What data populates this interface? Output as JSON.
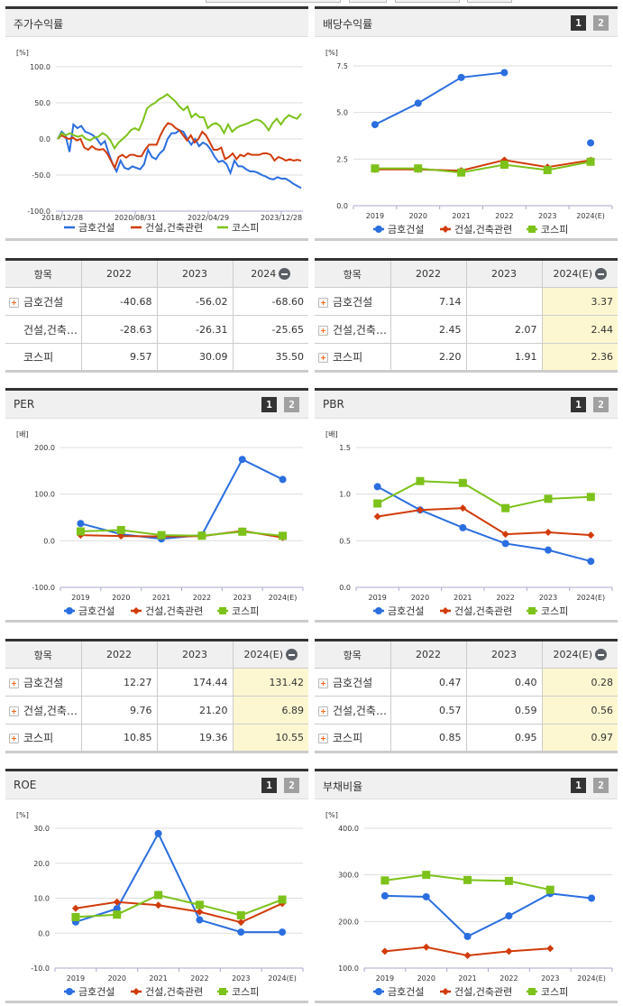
{
  "colors": {
    "company": "#2a6ee0",
    "sector": "#d13b0a",
    "kospi": "#7cc21a",
    "grid": "#dddddd",
    "estimate_bg": "#fdf7d1"
  },
  "legend": {
    "company": "금호건설",
    "sector": "건설,건축관련",
    "kospi": "코스피"
  },
  "badges": {
    "one": "1",
    "two": "2"
  },
  "panels": {
    "stock_return": {
      "title": "주가수익률",
      "unit": "[%]",
      "y_ticks": [
        "100.0",
        "50.0",
        "0.0",
        "-50.0",
        "-100.0"
      ],
      "x_ticks": [
        "2018/12/28",
        "2020/08/31",
        "2022/04/29",
        "2023/12/28"
      ]
    },
    "dividend": {
      "title": "배당수익률",
      "unit": "[%]",
      "y_ticks": [
        "7.5",
        "5.0",
        "2.5",
        "0.0"
      ],
      "x_ticks": [
        "2019",
        "2020",
        "2021",
        "2022",
        "2023",
        "2024(E)"
      ]
    },
    "per": {
      "title": "PER",
      "unit": "[배]",
      "y_ticks": [
        "200.0",
        "100.0",
        "0.0",
        "-100.0"
      ],
      "x_ticks": [
        "2019",
        "2020",
        "2021",
        "2022",
        "2023",
        "2024(E)"
      ]
    },
    "pbr": {
      "title": "PBR",
      "unit": "[배]",
      "y_ticks": [
        "1.5",
        "1.0",
        "0.5",
        "0.0"
      ],
      "x_ticks": [
        "2019",
        "2020",
        "2021",
        "2022",
        "2023",
        "2024(E)"
      ]
    },
    "roe": {
      "title": "ROE",
      "unit": "[%]",
      "y_ticks": [
        "30.0",
        "20.0",
        "10.0",
        "0.0",
        "-10.0"
      ],
      "x_ticks": [
        "2019",
        "2020",
        "2021",
        "2022",
        "2023",
        "2024(E)"
      ]
    },
    "debt": {
      "title": "부채비율",
      "unit": "[%]",
      "y_ticks": [
        "400.0",
        "300.0",
        "200.0",
        "100.0"
      ],
      "x_ticks": [
        "2019",
        "2020",
        "2021",
        "2022",
        "2023",
        "2024(E)"
      ]
    }
  },
  "tables": {
    "stock_return": {
      "headers": [
        "항목",
        "2022",
        "2023",
        "2024"
      ],
      "rows": [
        {
          "name": "금호건설",
          "expandable": true,
          "values": [
            "-40.68",
            "-56.02",
            "-68.60"
          ]
        },
        {
          "name": "건설,건축…",
          "expandable": false,
          "values": [
            "-28.63",
            "-26.31",
            "-25.65"
          ]
        },
        {
          "name": "코스피",
          "expandable": false,
          "values": [
            "9.57",
            "30.09",
            "35.50"
          ]
        }
      ]
    },
    "dividend": {
      "headers": [
        "항목",
        "2022",
        "2023",
        "2024(E)"
      ],
      "rows": [
        {
          "name": "금호건설",
          "expandable": true,
          "values": [
            "7.14",
            "",
            "3.37"
          ]
        },
        {
          "name": "건설,건축…",
          "expandable": true,
          "values": [
            "2.45",
            "2.07",
            "2.44"
          ]
        },
        {
          "name": "코스피",
          "expandable": true,
          "values": [
            "2.20",
            "1.91",
            "2.36"
          ]
        }
      ]
    },
    "per": {
      "headers": [
        "항목",
        "2022",
        "2023",
        "2024(E)"
      ],
      "rows": [
        {
          "name": "금호건설",
          "expandable": true,
          "values": [
            "12.27",
            "174.44",
            "131.42"
          ]
        },
        {
          "name": "건설,건축…",
          "expandable": true,
          "values": [
            "9.76",
            "21.20",
            "6.89"
          ]
        },
        {
          "name": "코스피",
          "expandable": true,
          "values": [
            "10.85",
            "19.36",
            "10.55"
          ]
        }
      ]
    },
    "pbr": {
      "headers": [
        "항목",
        "2022",
        "2023",
        "2024(E)"
      ],
      "rows": [
        {
          "name": "금호건설",
          "expandable": true,
          "values": [
            "0.47",
            "0.40",
            "0.28"
          ]
        },
        {
          "name": "건설,건축…",
          "expandable": true,
          "values": [
            "0.57",
            "0.59",
            "0.56"
          ]
        },
        {
          "name": "코스피",
          "expandable": true,
          "values": [
            "0.85",
            "0.95",
            "0.97"
          ]
        }
      ]
    }
  },
  "chart_data": [
    {
      "type": "line",
      "title": "주가수익률",
      "ylabel": "[%]",
      "ylim": [
        -100,
        100
      ],
      "x_ticks": [
        "2018/12/28",
        "2020/08/31",
        "2022/04/29",
        "2023/12/28"
      ],
      "grid": true,
      "legend_position": "bottom",
      "series": [
        {
          "name": "금호건설",
          "values": [
            0,
            10,
            5,
            -18,
            20,
            15,
            18,
            10,
            8,
            5,
            0,
            -8,
            -3,
            -20,
            -35,
            -45,
            -30,
            -40,
            -42,
            -38,
            -40,
            -42,
            -35,
            -15,
            -25,
            -28,
            -20,
            -15,
            0,
            8,
            8,
            12,
            10,
            0,
            -8,
            0,
            -10,
            -5,
            -8,
            -15,
            -25,
            -32,
            -30,
            -35,
            -47,
            -30,
            -38,
            -38,
            -42,
            -45,
            -45,
            -47,
            -50,
            -52,
            -55,
            -56,
            -53,
            -55,
            -55,
            -58,
            -62,
            -65,
            -68
          ]
        },
        {
          "name": "건설,건축관련",
          "values": [
            0,
            5,
            2,
            0,
            2,
            -2,
            0,
            -12,
            -15,
            -10,
            -14,
            -15,
            -14,
            -20,
            -30,
            -40,
            -25,
            -22,
            -26,
            -22,
            -22,
            -24,
            -24,
            -15,
            -8,
            -8,
            -8,
            5,
            15,
            22,
            20,
            15,
            12,
            5,
            -2,
            5,
            -5,
            0,
            10,
            5,
            -5,
            -15,
            -15,
            -12,
            -28,
            -25,
            -20,
            -28,
            -22,
            -24,
            -20,
            -22,
            -22,
            -22,
            -20,
            -20,
            -22,
            -30,
            -25,
            -27,
            -30,
            -28,
            -30,
            -29,
            -30
          ]
        },
        {
          "name": "코스피",
          "values": [
            0,
            8,
            5,
            8,
            5,
            3,
            5,
            0,
            -2,
            2,
            3,
            8,
            5,
            -2,
            -13,
            -5,
            0,
            5,
            12,
            15,
            12,
            25,
            42,
            47,
            50,
            55,
            58,
            62,
            57,
            52,
            45,
            40,
            45,
            30,
            35,
            30,
            30,
            15,
            20,
            22,
            18,
            8,
            20,
            10,
            15,
            18,
            20,
            22,
            25,
            27,
            25,
            20,
            12,
            22,
            28,
            20,
            28,
            33,
            30,
            28,
            35
          ]
        }
      ]
    },
    {
      "type": "line",
      "title": "배당수익률",
      "ylabel": "[%]",
      "ylim": [
        0,
        7.5
      ],
      "categories": [
        "2019",
        "2020",
        "2021",
        "2022",
        "2023",
        "2024(E)"
      ],
      "grid": true,
      "legend_position": "bottom",
      "series": [
        {
          "name": "금호건설",
          "values": [
            4.35,
            5.5,
            6.88,
            7.14,
            null,
            3.37
          ]
        },
        {
          "name": "건설,건축관련",
          "values": [
            1.95,
            1.95,
            1.88,
            2.45,
            2.07,
            2.44
          ]
        },
        {
          "name": "코스피",
          "values": [
            2.0,
            2.0,
            1.78,
            2.2,
            1.91,
            2.36
          ]
        }
      ]
    },
    {
      "type": "line",
      "title": "PER",
      "ylabel": "[배]",
      "ylim": [
        -100,
        200
      ],
      "categories": [
        "2019",
        "2020",
        "2021",
        "2022",
        "2023",
        "2024(E)"
      ],
      "grid": true,
      "legend_position": "bottom",
      "series": [
        {
          "name": "금호건설",
          "values": [
            37,
            14,
            4,
            12.27,
            174.44,
            131.42
          ]
        },
        {
          "name": "건설,건축관련",
          "values": [
            12,
            10,
            9,
            9.76,
            21.2,
            6.89
          ]
        },
        {
          "name": "코스피",
          "values": [
            20,
            23,
            12,
            10.85,
            19.36,
            10.55
          ]
        }
      ]
    },
    {
      "type": "line",
      "title": "PBR",
      "ylabel": "[배]",
      "ylim": [
        0,
        1.5
      ],
      "categories": [
        "2019",
        "2020",
        "2021",
        "2022",
        "2023",
        "2024(E)"
      ],
      "grid": true,
      "legend_position": "bottom",
      "series": [
        {
          "name": "금호건설",
          "values": [
            1.08,
            0.83,
            0.64,
            0.47,
            0.4,
            0.28
          ]
        },
        {
          "name": "건설,건축관련",
          "values": [
            0.76,
            0.83,
            0.85,
            0.57,
            0.59,
            0.56
          ]
        },
        {
          "name": "코스피",
          "values": [
            0.9,
            1.14,
            1.12,
            0.85,
            0.95,
            0.97
          ]
        }
      ]
    },
    {
      "type": "line",
      "title": "ROE",
      "ylabel": "[%]",
      "ylim": [
        -10,
        30
      ],
      "categories": [
        "2019",
        "2020",
        "2021",
        "2022",
        "2023",
        "2024(E)"
      ],
      "grid": true,
      "legend_position": "bottom",
      "series": [
        {
          "name": "금호건설",
          "values": [
            3.2,
            7.0,
            28.5,
            3.8,
            0.3,
            0.3
          ]
        },
        {
          "name": "건설,건축관련",
          "values": [
            7.1,
            8.9,
            8.0,
            6.1,
            3.1,
            8.5
          ]
        },
        {
          "name": "코스피",
          "values": [
            4.6,
            5.3,
            10.9,
            8.1,
            5.1,
            9.6
          ]
        }
      ]
    },
    {
      "type": "line",
      "title": "부채비율",
      "ylabel": "[%]",
      "ylim": [
        100,
        400
      ],
      "categories": [
        "2019",
        "2020",
        "2021",
        "2022",
        "2023",
        "2024(E)"
      ],
      "grid": true,
      "legend_position": "bottom",
      "series": [
        {
          "name": "금호건설",
          "values": [
            255,
            253,
            168,
            212,
            260,
            250
          ]
        },
        {
          "name": "건설,건축관련",
          "values": [
            136,
            145,
            127,
            136,
            142,
            null
          ]
        },
        {
          "name": "코스피",
          "values": [
            288,
            300,
            289,
            287,
            268,
            null
          ]
        }
      ]
    }
  ]
}
